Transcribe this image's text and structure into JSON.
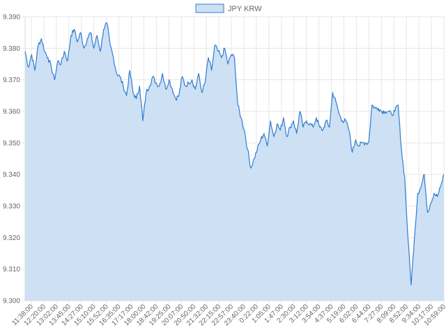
{
  "chart_data": {
    "type": "area",
    "title": "",
    "xlabel": "",
    "ylabel": "",
    "legend": {
      "position": "top",
      "entries": [
        "JPY KRW"
      ]
    },
    "grid": true,
    "ylim": [
      9.3,
      9.39
    ],
    "y_ticks": [
      "9.390",
      "9.380",
      "9.370",
      "9.360",
      "9.350",
      "9.340",
      "9.330",
      "9.320",
      "9.310",
      "9.300"
    ],
    "x_ticks": [
      "11:38:00",
      "12:20:00",
      "13:02:00",
      "13:45:00",
      "14:27:00",
      "15:10:00",
      "15:52:00",
      "16:35:00",
      "17:17:00",
      "18:00:00",
      "18:42:00",
      "19:25:00",
      "20:07:00",
      "20:50:00",
      "21:32:00",
      "22:15:00",
      "22:57:00",
      "23:40:00",
      "0:22:00",
      "1:05:00",
      "1:47:00",
      "2:30:00",
      "3:12:00",
      "3:54:00",
      "4:37:00",
      "5:19:00",
      "6:02:00",
      "6:44:00",
      "7:27:00",
      "8:09:00",
      "8:52:00",
      "9:34:00",
      "10:17:00",
      "10:59:00"
    ],
    "series": [
      {
        "name": "JPY KRW",
        "color": "#2e7dd1",
        "fill": "#cde0f4",
        "values": [
          9.379,
          9.374,
          9.378,
          9.373,
          9.381,
          9.383,
          9.379,
          9.377,
          9.374,
          9.37,
          9.376,
          9.375,
          9.379,
          9.376,
          9.384,
          9.386,
          9.382,
          9.385,
          9.38,
          9.383,
          9.385,
          9.38,
          9.384,
          9.379,
          9.386,
          9.388,
          9.381,
          9.377,
          9.372,
          9.371,
          9.368,
          9.365,
          9.373,
          9.366,
          9.364,
          9.368,
          9.357,
          9.366,
          9.368,
          9.371,
          9.369,
          9.368,
          9.372,
          9.367,
          9.37,
          9.367,
          9.364,
          9.365,
          9.371,
          9.368,
          9.369,
          9.37,
          9.367,
          9.372,
          9.366,
          9.369,
          9.377,
          9.373,
          9.381,
          9.379,
          9.377,
          9.38,
          9.375,
          9.378,
          9.377,
          9.362,
          9.358,
          9.354,
          9.348,
          9.342,
          9.345,
          9.348,
          9.351,
          9.353,
          9.349,
          9.357,
          9.352,
          9.356,
          9.354,
          9.358,
          9.352,
          9.355,
          9.357,
          9.353,
          9.36,
          9.355,
          9.357,
          9.356,
          9.355,
          9.358,
          9.355,
          9.354,
          9.357,
          9.355,
          9.366,
          9.363,
          9.359,
          9.357,
          9.357,
          9.354,
          9.347,
          9.351,
          9.349,
          9.35,
          9.35,
          9.35,
          9.362,
          9.361,
          9.361,
          9.36,
          9.36,
          9.36,
          9.359,
          9.36,
          9.362,
          9.348,
          9.339,
          9.32,
          9.305,
          9.32,
          9.334,
          9.336,
          9.34,
          9.328,
          9.331,
          9.334,
          9.333,
          9.336,
          9.34
        ]
      }
    ]
  }
}
